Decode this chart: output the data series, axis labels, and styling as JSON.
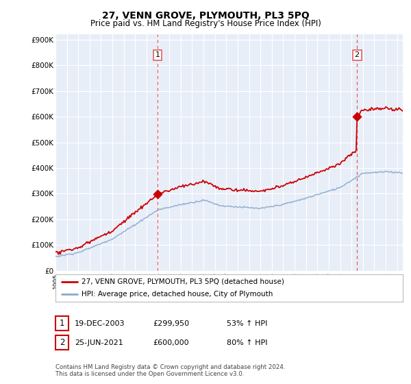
{
  "title": "27, VENN GROVE, PLYMOUTH, PL3 5PQ",
  "subtitle": "Price paid vs. HM Land Registry's House Price Index (HPI)",
  "ylabel_ticks": [
    "£0",
    "£100K",
    "£200K",
    "£300K",
    "£400K",
    "£500K",
    "£600K",
    "£700K",
    "£800K",
    "£900K"
  ],
  "ytick_values": [
    0,
    100000,
    200000,
    300000,
    400000,
    500000,
    600000,
    700000,
    800000,
    900000
  ],
  "ylim": [
    0,
    920000
  ],
  "xlim_start": 1995.0,
  "xlim_end": 2025.5,
  "background_color": "#ffffff",
  "plot_bg_color": "#e8eef8",
  "grid_color": "#ffffff",
  "purchase1_x": 2003.97,
  "purchase1_y": 299950,
  "purchase2_x": 2021.48,
  "purchase2_y": 600000,
  "vline_color": "#e06060",
  "legend_entries": [
    "27, VENN GROVE, PLYMOUTH, PL3 5PQ (detached house)",
    "HPI: Average price, detached house, City of Plymouth"
  ],
  "red_line_color": "#cc0000",
  "blue_line_color": "#88aacc",
  "annotation1": {
    "box_label": "1",
    "date_str": "19-DEC-2003",
    "price_str": "£299,950",
    "hpi_str": "53% ↑ HPI"
  },
  "annotation2": {
    "box_label": "2",
    "date_str": "25-JUN-2021",
    "price_str": "£600,000",
    "hpi_str": "80% ↑ HPI"
  },
  "footer": "Contains HM Land Registry data © Crown copyright and database right 2024.\nThis data is licensed under the Open Government Licence v3.0."
}
